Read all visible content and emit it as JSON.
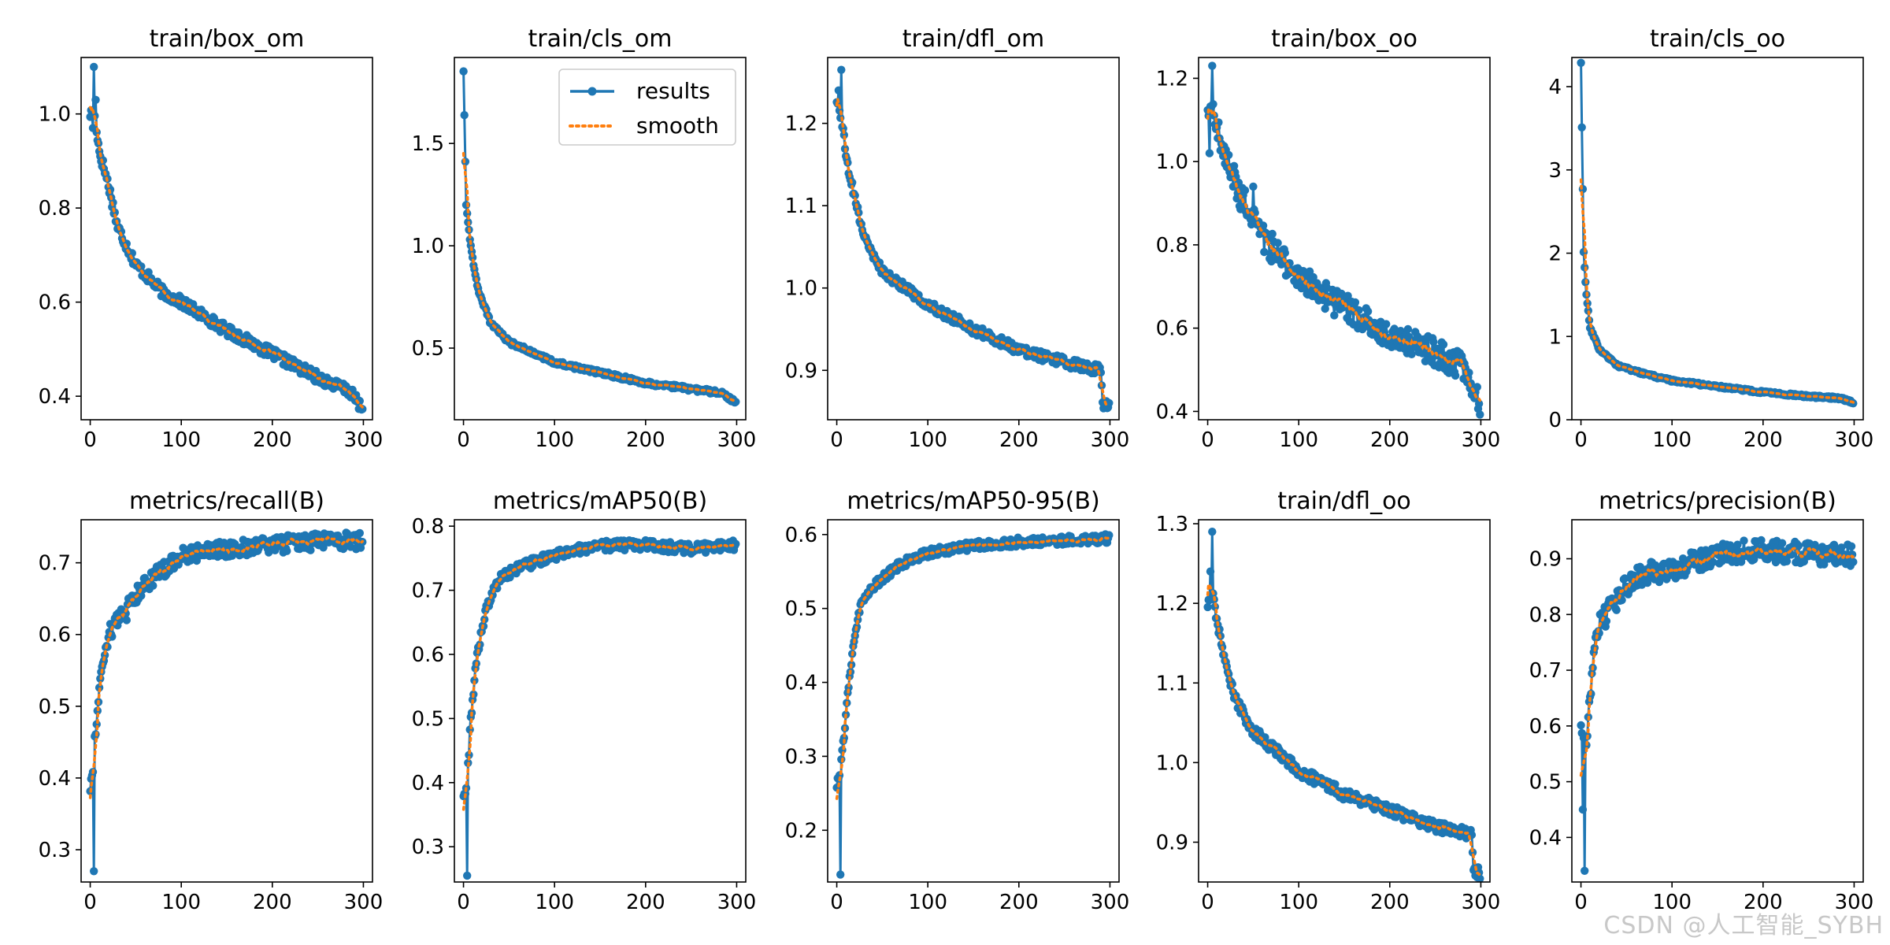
{
  "figure": {
    "watermark": "CSDN @人工智能_SYBH"
  },
  "legend": {
    "results": "results",
    "smooth": "smooth"
  },
  "colors": {
    "results": "#1f77b4",
    "smooth": "#ff7f0e",
    "axis": "#000000"
  },
  "chart_data": [
    {
      "type": "line",
      "title": "train/box_om",
      "xlim": [
        -10,
        310
      ],
      "ylim": [
        0.35,
        1.12
      ],
      "xticks": [
        0,
        100,
        200,
        300
      ],
      "yticks": [
        0.4,
        0.6,
        0.8,
        1.0
      ],
      "tick_decimals": 1,
      "curve": {
        "kind": "decay",
        "start": 0.99,
        "anchors": [
          [
            5,
            1.0
          ],
          [
            10,
            0.92
          ],
          [
            20,
            0.85
          ],
          [
            30,
            0.76
          ],
          [
            50,
            0.68
          ],
          [
            80,
            0.62
          ],
          [
            100,
            0.6
          ],
          [
            150,
            0.54
          ],
          [
            200,
            0.49
          ],
          [
            250,
            0.44
          ],
          [
            285,
            0.41
          ],
          [
            300,
            0.37
          ]
        ],
        "noise": 0.012
      },
      "spikes": [
        [
          4,
          1.1
        ],
        [
          6,
          1.03
        ],
        [
          3,
          0.97
        ]
      ],
      "legend": false
    },
    {
      "type": "line",
      "title": "train/cls_om",
      "xlim": [
        -10,
        310
      ],
      "ylim": [
        0.15,
        1.92
      ],
      "xticks": [
        0,
        100,
        200,
        300
      ],
      "yticks": [
        0.5,
        1.0,
        1.5
      ],
      "tick_decimals": 1,
      "curve": {
        "kind": "decay",
        "start": 1.86,
        "anchors": [
          [
            0,
            1.86
          ],
          [
            3,
            1.2
          ],
          [
            8,
            1.0
          ],
          [
            15,
            0.8
          ],
          [
            30,
            0.62
          ],
          [
            50,
            0.53
          ],
          [
            100,
            0.43
          ],
          [
            150,
            0.38
          ],
          [
            200,
            0.33
          ],
          [
            250,
            0.3
          ],
          [
            285,
            0.28
          ],
          [
            300,
            0.23
          ]
        ],
        "noise": 0.01
      },
      "spikes": [],
      "legend": true,
      "legend_position": "top-right"
    },
    {
      "type": "line",
      "title": "train/dfl_om",
      "xlim": [
        -10,
        310
      ],
      "ylim": [
        0.84,
        1.28
      ],
      "xticks": [
        0,
        100,
        200,
        300
      ],
      "yticks": [
        0.9,
        1.0,
        1.1,
        1.2
      ],
      "tick_decimals": 1,
      "curve": {
        "kind": "decay",
        "start": 1.22,
        "anchors": [
          [
            0,
            1.22
          ],
          [
            5,
            1.21
          ],
          [
            10,
            1.16
          ],
          [
            20,
            1.11
          ],
          [
            30,
            1.06
          ],
          [
            50,
            1.02
          ],
          [
            100,
            0.98
          ],
          [
            150,
            0.95
          ],
          [
            200,
            0.925
          ],
          [
            250,
            0.91
          ],
          [
            290,
            0.9
          ],
          [
            292,
            0.86
          ],
          [
            300,
            0.855
          ]
        ],
        "noise": 0.006
      },
      "spikes": [
        [
          5,
          1.265
        ],
        [
          2,
          1.24
        ]
      ],
      "legend": false
    },
    {
      "type": "line",
      "title": "train/box_oo",
      "xlim": [
        -10,
        310
      ],
      "ylim": [
        0.38,
        1.25
      ],
      "xticks": [
        0,
        100,
        200,
        300
      ],
      "yticks": [
        0.4,
        0.6,
        0.8,
        1.0,
        1.2
      ],
      "tick_decimals": 1,
      "curve": {
        "kind": "decay",
        "start": 1.1,
        "anchors": [
          [
            0,
            1.1
          ],
          [
            5,
            1.12
          ],
          [
            20,
            1.0
          ],
          [
            40,
            0.9
          ],
          [
            60,
            0.82
          ],
          [
            100,
            0.72
          ],
          [
            150,
            0.65
          ],
          [
            200,
            0.58
          ],
          [
            250,
            0.54
          ],
          [
            285,
            0.5
          ],
          [
            295,
            0.43
          ],
          [
            300,
            0.42
          ]
        ],
        "noise": 0.035
      },
      "spikes": [
        [
          5,
          1.23
        ],
        [
          2,
          1.02
        ],
        [
          50,
          0.94
        ]
      ],
      "legend": false
    },
    {
      "type": "line",
      "title": "train/cls_oo",
      "xlim": [
        -10,
        310
      ],
      "ylim": [
        0,
        4.35
      ],
      "xticks": [
        0,
        100,
        200,
        300
      ],
      "yticks": [
        0,
        1,
        2,
        3,
        4
      ],
      "tick_decimals": 0,
      "curve": {
        "kind": "decay",
        "start": 4.28,
        "anchors": [
          [
            0,
            4.28
          ],
          [
            3,
            2.0
          ],
          [
            6,
            1.5
          ],
          [
            10,
            1.1
          ],
          [
            20,
            0.85
          ],
          [
            40,
            0.65
          ],
          [
            70,
            0.55
          ],
          [
            100,
            0.47
          ],
          [
            150,
            0.4
          ],
          [
            200,
            0.33
          ],
          [
            250,
            0.28
          ],
          [
            285,
            0.26
          ],
          [
            300,
            0.2
          ]
        ],
        "noise": 0.015
      },
      "spikes": [],
      "legend": false
    },
    {
      "type": "line",
      "title": "metrics/recall(B)",
      "xlim": [
        -10,
        310
      ],
      "ylim": [
        0.255,
        0.76
      ],
      "xticks": [
        0,
        100,
        200,
        300
      ],
      "yticks": [
        0.3,
        0.4,
        0.5,
        0.6,
        0.7
      ],
      "tick_decimals": 1,
      "curve": {
        "kind": "rise",
        "start": 0.38,
        "anchors": [
          [
            0,
            0.38
          ],
          [
            4,
            0.43
          ],
          [
            8,
            0.5
          ],
          [
            12,
            0.55
          ],
          [
            20,
            0.6
          ],
          [
            40,
            0.64
          ],
          [
            60,
            0.67
          ],
          [
            80,
            0.69
          ],
          [
            100,
            0.71
          ],
          [
            150,
            0.72
          ],
          [
            200,
            0.725
          ],
          [
            250,
            0.73
          ],
          [
            300,
            0.73
          ]
        ],
        "noise": 0.012
      },
      "spikes": [
        [
          4,
          0.27
        ],
        [
          40,
          0.62
        ]
      ],
      "legend": false
    },
    {
      "type": "line",
      "title": "metrics/mAP50(B)",
      "xlim": [
        -10,
        310
      ],
      "ylim": [
        0.245,
        0.81
      ],
      "xticks": [
        0,
        100,
        200,
        300
      ],
      "yticks": [
        0.3,
        0.4,
        0.5,
        0.6,
        0.7,
        0.8
      ],
      "tick_decimals": 1,
      "curve": {
        "kind": "rise",
        "start": 0.38,
        "anchors": [
          [
            0,
            0.38
          ],
          [
            4,
            0.4
          ],
          [
            8,
            0.5
          ],
          [
            15,
            0.6
          ],
          [
            25,
            0.67
          ],
          [
            40,
            0.72
          ],
          [
            70,
            0.74
          ],
          [
            100,
            0.755
          ],
          [
            150,
            0.77
          ],
          [
            200,
            0.77
          ],
          [
            250,
            0.765
          ],
          [
            300,
            0.77
          ]
        ],
        "noise": 0.008
      },
      "spikes": [
        [
          4,
          0.255
        ]
      ],
      "legend": false
    },
    {
      "type": "line",
      "title": "metrics/mAP50-95(B)",
      "xlim": [
        -10,
        310
      ],
      "ylim": [
        0.13,
        0.62
      ],
      "xticks": [
        0,
        100,
        200,
        300
      ],
      "yticks": [
        0.2,
        0.3,
        0.4,
        0.5,
        0.6
      ],
      "tick_decimals": 1,
      "curve": {
        "kind": "rise",
        "start": 0.26,
        "anchors": [
          [
            0,
            0.26
          ],
          [
            4,
            0.28
          ],
          [
            8,
            0.33
          ],
          [
            15,
            0.42
          ],
          [
            25,
            0.5
          ],
          [
            40,
            0.53
          ],
          [
            70,
            0.56
          ],
          [
            100,
            0.575
          ],
          [
            150,
            0.585
          ],
          [
            200,
            0.59
          ],
          [
            250,
            0.592
          ],
          [
            300,
            0.595
          ]
        ],
        "noise": 0.006
      },
      "spikes": [
        [
          4,
          0.14
        ]
      ],
      "legend": false
    },
    {
      "type": "line",
      "title": "train/dfl_oo",
      "xlim": [
        -10,
        310
      ],
      "ylim": [
        0.85,
        1.305
      ],
      "xticks": [
        0,
        100,
        200,
        300
      ],
      "yticks": [
        0.9,
        1.0,
        1.1,
        1.2,
        1.3
      ],
      "tick_decimals": 1,
      "curve": {
        "kind": "decay",
        "start": 1.2,
        "anchors": [
          [
            0,
            1.2
          ],
          [
            5,
            1.22
          ],
          [
            10,
            1.18
          ],
          [
            20,
            1.12
          ],
          [
            30,
            1.08
          ],
          [
            50,
            1.04
          ],
          [
            100,
            0.99
          ],
          [
            150,
            0.96
          ],
          [
            200,
            0.94
          ],
          [
            250,
            0.92
          ],
          [
            290,
            0.91
          ],
          [
            292,
            0.865
          ],
          [
            300,
            0.86
          ]
        ],
        "noise": 0.007
      },
      "spikes": [
        [
          5,
          1.29
        ],
        [
          3,
          1.24
        ]
      ],
      "legend": false
    },
    {
      "type": "line",
      "title": "metrics/precision(B)",
      "xlim": [
        -10,
        310
      ],
      "ylim": [
        0.32,
        0.97
      ],
      "xticks": [
        0,
        100,
        200,
        300
      ],
      "yticks": [
        0.4,
        0.5,
        0.6,
        0.7,
        0.8,
        0.9
      ],
      "tick_decimals": 1,
      "curve": {
        "kind": "rise",
        "start": 0.62,
        "anchors": [
          [
            0,
            0.62
          ],
          [
            4,
            0.55
          ],
          [
            8,
            0.6
          ],
          [
            12,
            0.7
          ],
          [
            20,
            0.78
          ],
          [
            40,
            0.83
          ],
          [
            60,
            0.87
          ],
          [
            100,
            0.88
          ],
          [
            150,
            0.91
          ],
          [
            200,
            0.915
          ],
          [
            250,
            0.91
          ],
          [
            300,
            0.905
          ]
        ],
        "noise": 0.02
      },
      "spikes": [
        [
          4,
          0.34
        ],
        [
          2,
          0.45
        ]
      ],
      "legend": false
    }
  ]
}
